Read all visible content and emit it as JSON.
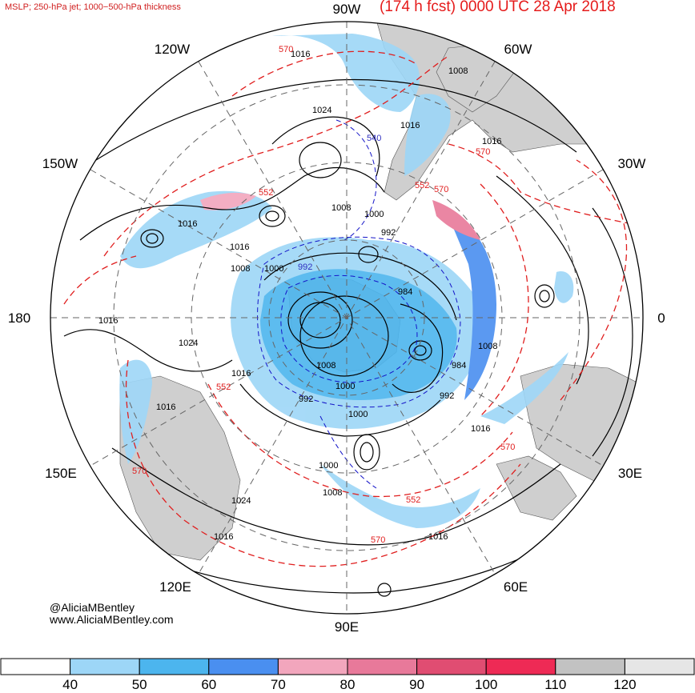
{
  "header": {
    "subtitle": "MSLP; 250-hPa jet; 1000−500-hPa thickness",
    "title": "(174 h fcst) 0000 UTC 28 Apr 2018"
  },
  "credits": {
    "handle": "@AliciaMBentley",
    "website": "www.AliciaMBentley.com"
  },
  "longitude_labels": [
    "90W",
    "60W",
    "30W",
    "0",
    "30E",
    "60E",
    "90E",
    "120E",
    "150E",
    "180",
    "150W",
    "120W"
  ],
  "colorbar": {
    "ticks": [
      "40",
      "50",
      "60",
      "70",
      "80",
      "90",
      "100",
      "110",
      "120"
    ],
    "bins": [
      {
        "color": "#ffffff"
      },
      {
        "color": "#9dd6f7"
      },
      {
        "color": "#4cb5ee"
      },
      {
        "color": "#4a8ff0"
      },
      {
        "color": "#f2a6bd"
      },
      {
        "color": "#e8799a"
      },
      {
        "color": "#e04d72"
      },
      {
        "color": "#ee2a55"
      },
      {
        "color": "#c2c2c2"
      },
      {
        "color": "#e6e6e6"
      }
    ]
  },
  "contour_labels": {
    "mslp": [
      "1016",
      "1008",
      "1024",
      "1016",
      "1016",
      "1016",
      "1008",
      "1000",
      "992",
      "1008",
      "1000",
      "992",
      "984",
      "1016",
      "1016",
      "1008",
      "984",
      "992",
      "1016",
      "1016",
      "1016",
      "1008",
      "1000",
      "1000",
      "992",
      "1024",
      "1000",
      "1008",
      "1024",
      "1016",
      "1016"
    ],
    "thickness": [
      "570",
      "540",
      "552",
      "552",
      "552",
      "570",
      "570",
      "570",
      "552",
      "570",
      "570"
    ]
  }
}
